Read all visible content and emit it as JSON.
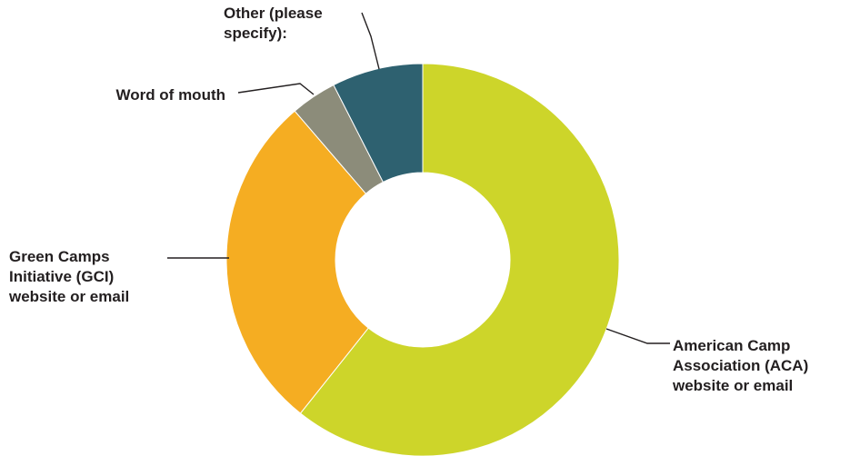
{
  "chart_data": {
    "type": "pie",
    "variant": "donut",
    "title": "",
    "start_angle_deg": 0,
    "direction": "clockwise",
    "slices": [
      {
        "label_lines": [
          "American Camp",
          "Association (ACA)",
          "website or email"
        ],
        "value": 60.7,
        "color": "#cdd52a",
        "label_anchor": "start"
      },
      {
        "label_lines": [
          "Green Camps",
          "Initiative (GCI)",
          "website or email"
        ],
        "value": 28.0,
        "color": "#f5ad22",
        "label_anchor": "start"
      },
      {
        "label_lines": [
          "Word of mouth"
        ],
        "value": 3.8,
        "color": "#8c8c7a",
        "label_anchor": "end"
      },
      {
        "label_lines": [
          "Other (please",
          "specify):"
        ],
        "value": 7.5,
        "color": "#2e6170",
        "label_anchor": "start"
      }
    ],
    "legend": "none",
    "labels": "outside with leader lines"
  }
}
